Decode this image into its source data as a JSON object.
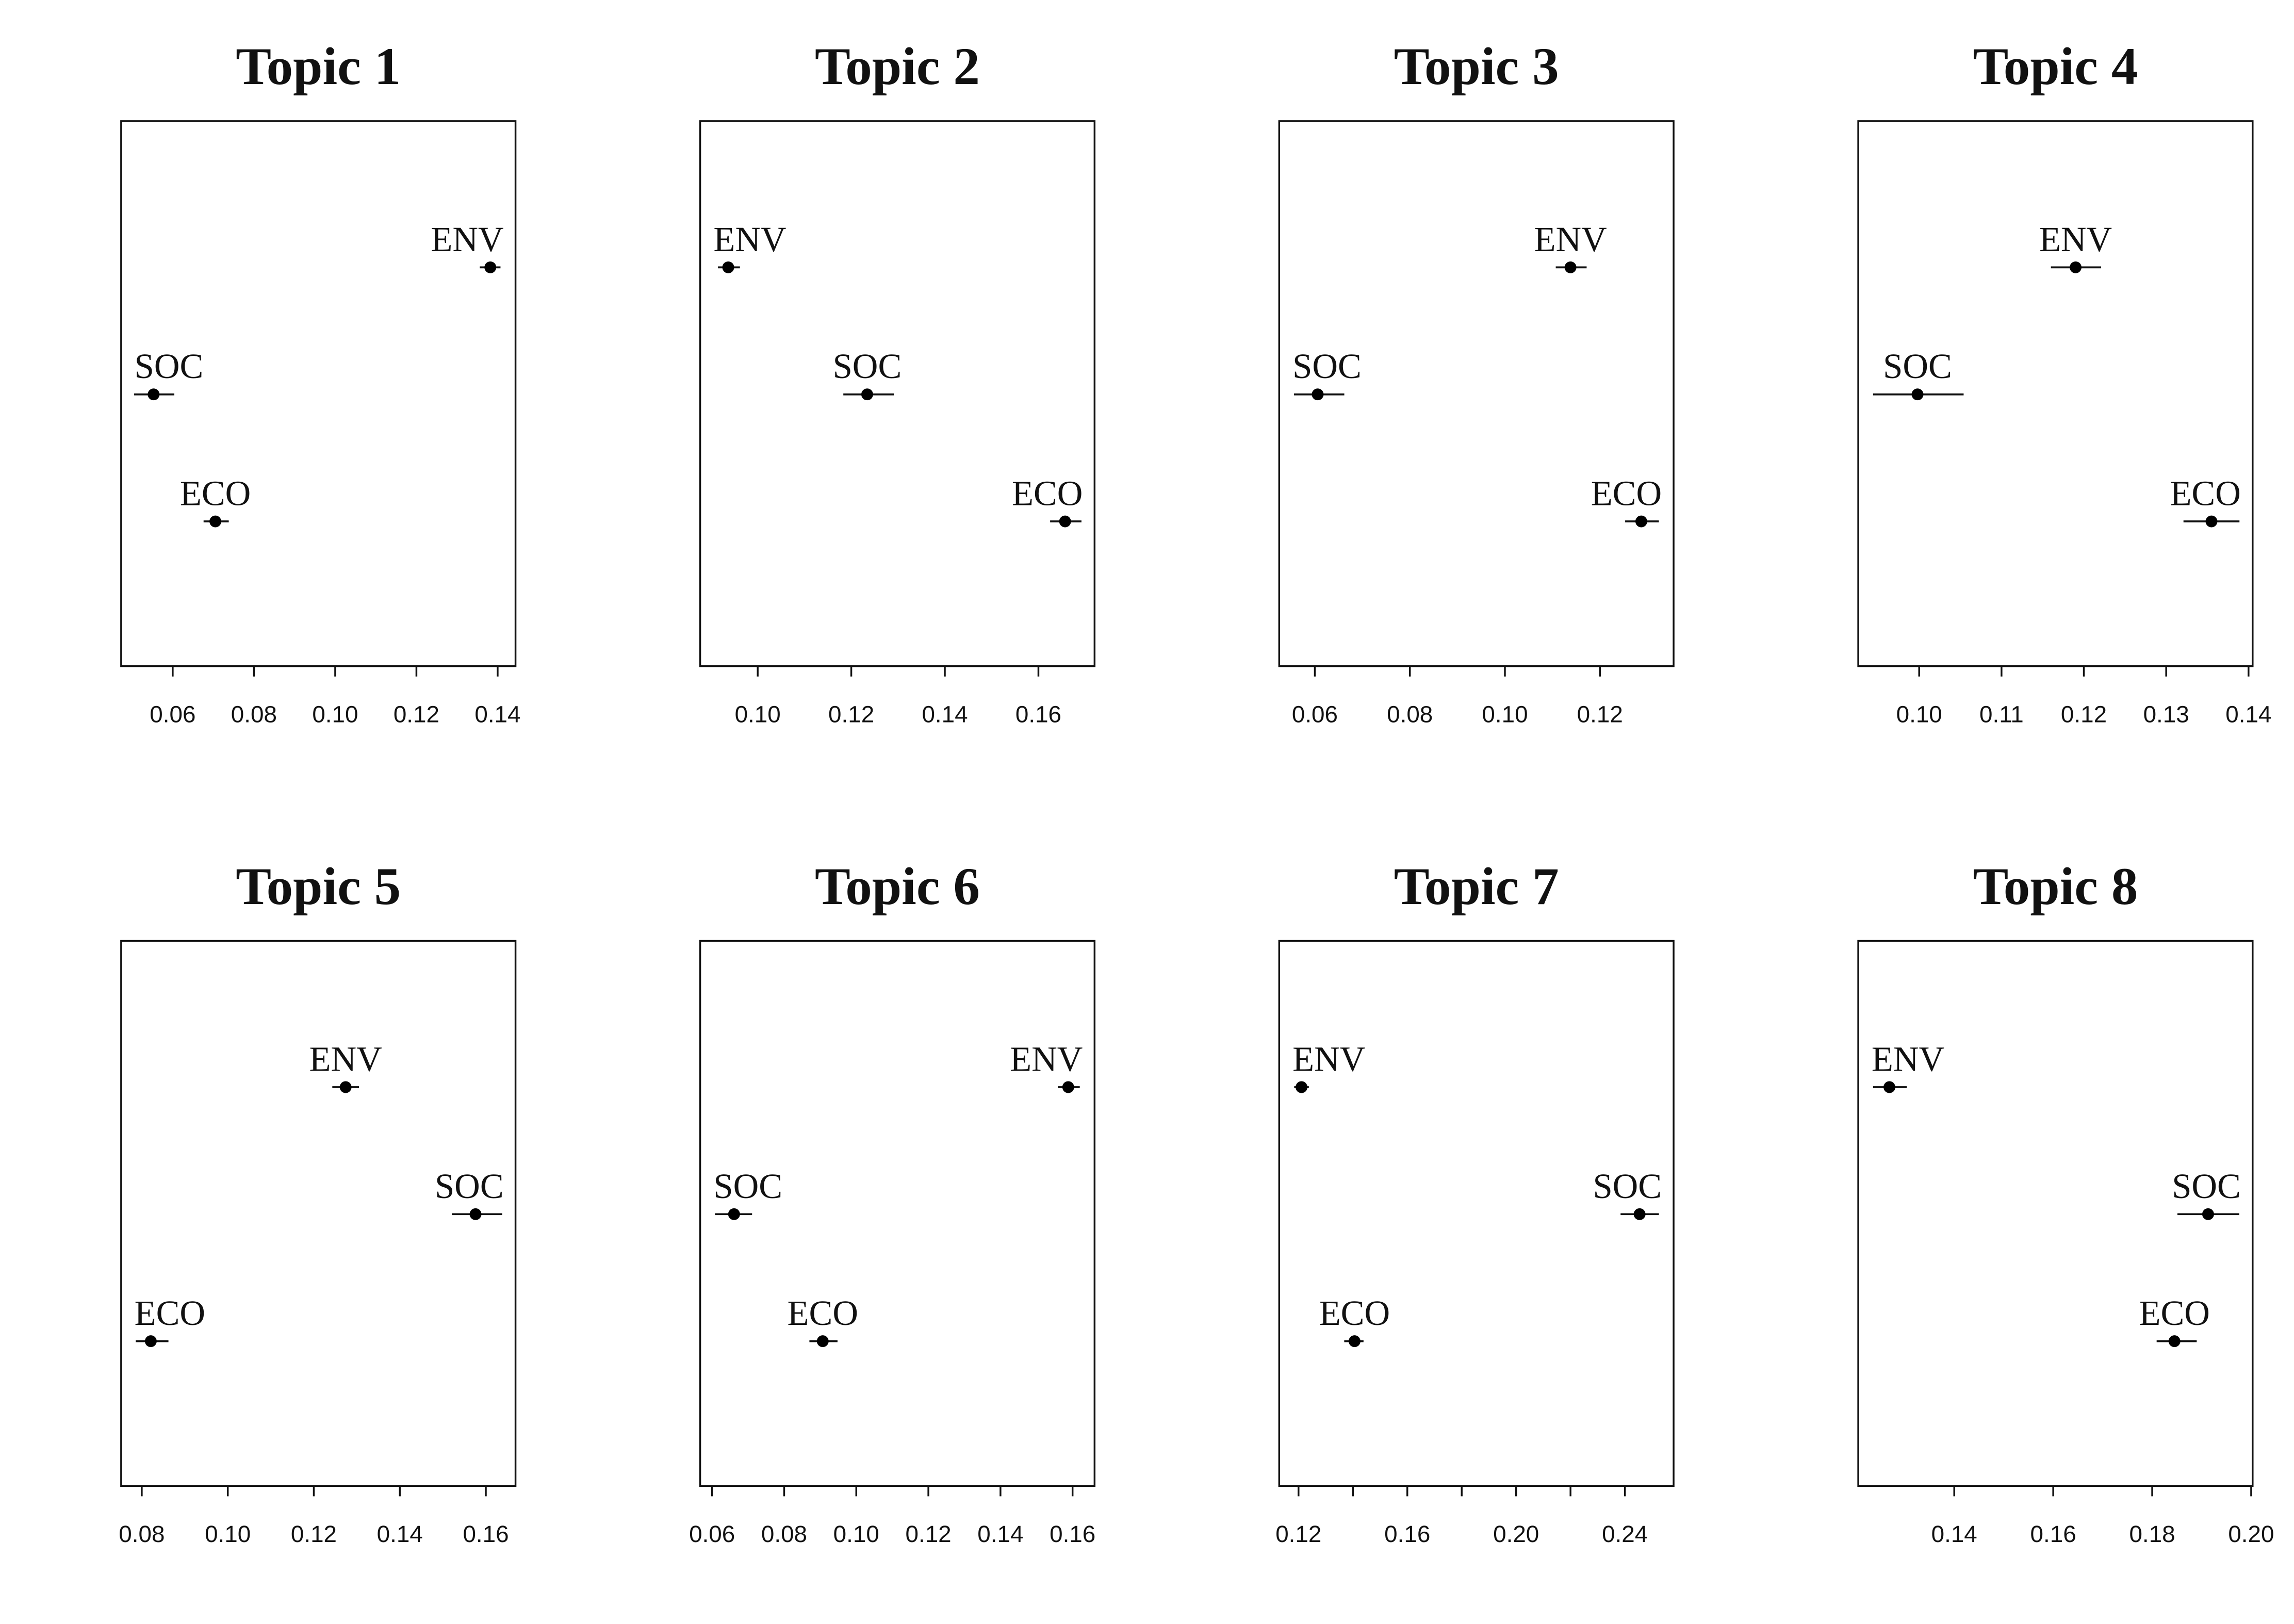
{
  "chart_data": [
    {
      "type": "scatter",
      "title": "Topic 1",
      "xlim": [
        0.0473,
        0.1444
      ],
      "xticks": [
        0.06,
        0.08,
        0.1,
        0.12,
        0.14
      ],
      "xtick_labels": [
        "0.06",
        "0.08",
        "0.10",
        "0.12",
        "0.14"
      ],
      "points": [
        {
          "label": "ENV",
          "estimate": 0.1382,
          "lower": 0.1356,
          "upper": 0.1407
        },
        {
          "label": "SOC",
          "estimate": 0.0553,
          "lower": 0.0505,
          "upper": 0.0604
        },
        {
          "label": "ECO",
          "estimate": 0.0705,
          "lower": 0.0676,
          "upper": 0.0738
        }
      ]
    },
    {
      "type": "scatter",
      "title": "Topic 2",
      "xlim": [
        0.0877,
        0.172
      ],
      "xticks": [
        0.1,
        0.12,
        0.14,
        0.16
      ],
      "xtick_labels": [
        "0.10",
        "0.12",
        "0.14",
        "0.16"
      ],
      "points": [
        {
          "label": "ENV",
          "estimate": 0.0937,
          "lower": 0.0915,
          "upper": 0.0962
        },
        {
          "label": "SOC",
          "estimate": 0.1234,
          "lower": 0.1183,
          "upper": 0.1291
        },
        {
          "label": "ECO",
          "estimate": 0.1657,
          "lower": 0.1625,
          "upper": 0.1692
        }
      ]
    },
    {
      "type": "scatter",
      "title": "Topic 3",
      "xlim": [
        0.0525,
        0.1355
      ],
      "xticks": [
        0.06,
        0.08,
        0.1,
        0.12
      ],
      "xtick_labels": [
        "0.06",
        "0.08",
        "0.10",
        "0.12"
      ],
      "points": [
        {
          "label": "ENV",
          "estimate": 0.1138,
          "lower": 0.1107,
          "upper": 0.1172
        },
        {
          "label": "SOC",
          "estimate": 0.0606,
          "lower": 0.0556,
          "upper": 0.0662
        },
        {
          "label": "ECO",
          "estimate": 0.1287,
          "lower": 0.1253,
          "upper": 0.1324
        }
      ]
    },
    {
      "type": "scatter",
      "title": "Topic 4",
      "xlim": [
        0.0926,
        0.1405
      ],
      "xticks": [
        0.1,
        0.11,
        0.12,
        0.13,
        0.14
      ],
      "xtick_labels": [
        "0.10",
        "0.11",
        "0.12",
        "0.13",
        "0.14"
      ],
      "points": [
        {
          "label": "ENV",
          "estimate": 0.119,
          "lower": 0.116,
          "upper": 0.1221
        },
        {
          "label": "SOC",
          "estimate": 0.0998,
          "lower": 0.0944,
          "upper": 0.1054
        },
        {
          "label": "ECO",
          "estimate": 0.1355,
          "lower": 0.1321,
          "upper": 0.1389
        }
      ]
    },
    {
      "type": "scatter",
      "title": "Topic 5",
      "xlim": [
        0.0752,
        0.1669
      ],
      "xticks": [
        0.08,
        0.1,
        0.12,
        0.14,
        0.16
      ],
      "xtick_labels": [
        "0.08",
        "0.10",
        "0.12",
        "0.14",
        "0.16"
      ],
      "points": [
        {
          "label": "ENV",
          "estimate": 0.1274,
          "lower": 0.1243,
          "upper": 0.1305
        },
        {
          "label": "SOC",
          "estimate": 0.1576,
          "lower": 0.1521,
          "upper": 0.1638
        },
        {
          "label": "ECO",
          "estimate": 0.0821,
          "lower": 0.0786,
          "upper": 0.0862
        }
      ]
    },
    {
      "type": "scatter",
      "title": "Topic 6",
      "xlim": [
        0.0567,
        0.1661
      ],
      "xticks": [
        0.06,
        0.08,
        0.1,
        0.12,
        0.14,
        0.16
      ],
      "xtick_labels": [
        "0.06",
        "0.08",
        "0.10",
        "0.12",
        "0.14",
        "0.16"
      ],
      "points": [
        {
          "label": "ENV",
          "estimate": 0.1588,
          "lower": 0.1559,
          "upper": 0.162
        },
        {
          "label": "SOC",
          "estimate": 0.0661,
          "lower": 0.0608,
          "upper": 0.0711
        },
        {
          "label": "ECO",
          "estimate": 0.0907,
          "lower": 0.087,
          "upper": 0.0948
        }
      ]
    },
    {
      "type": "scatter",
      "title": "Topic 7",
      "xlim": [
        0.1129,
        0.2579
      ],
      "xticks": [
        0.12,
        0.14,
        0.16,
        0.18,
        0.2,
        0.22,
        0.24
      ],
      "xtick_labels": [
        "0.12",
        "0.16",
        "0.20",
        "0.24"
      ],
      "points": [
        {
          "label": "ENV",
          "estimate": 0.1211,
          "lower": 0.1184,
          "upper": 0.1238
        },
        {
          "label": "SOC",
          "estimate": 0.2454,
          "lower": 0.2384,
          "upper": 0.2525
        },
        {
          "label": "ECO",
          "estimate": 0.1406,
          "lower": 0.1368,
          "upper": 0.1439
        }
      ]
    },
    {
      "type": "scatter",
      "title": "Topic 8",
      "xlim": [
        0.1206,
        0.2003
      ],
      "xticks": [
        0.14,
        0.16,
        0.18,
        0.2
      ],
      "xtick_labels": [
        "0.14",
        "0.16",
        "0.18",
        "0.20"
      ],
      "points": [
        {
          "label": "ENV",
          "estimate": 0.1269,
          "lower": 0.1236,
          "upper": 0.1304
        },
        {
          "label": "SOC",
          "estimate": 0.1913,
          "lower": 0.1851,
          "upper": 0.1976
        },
        {
          "label": "ECO",
          "estimate": 0.1845,
          "lower": 0.1809,
          "upper": 0.189
        }
      ]
    }
  ]
}
